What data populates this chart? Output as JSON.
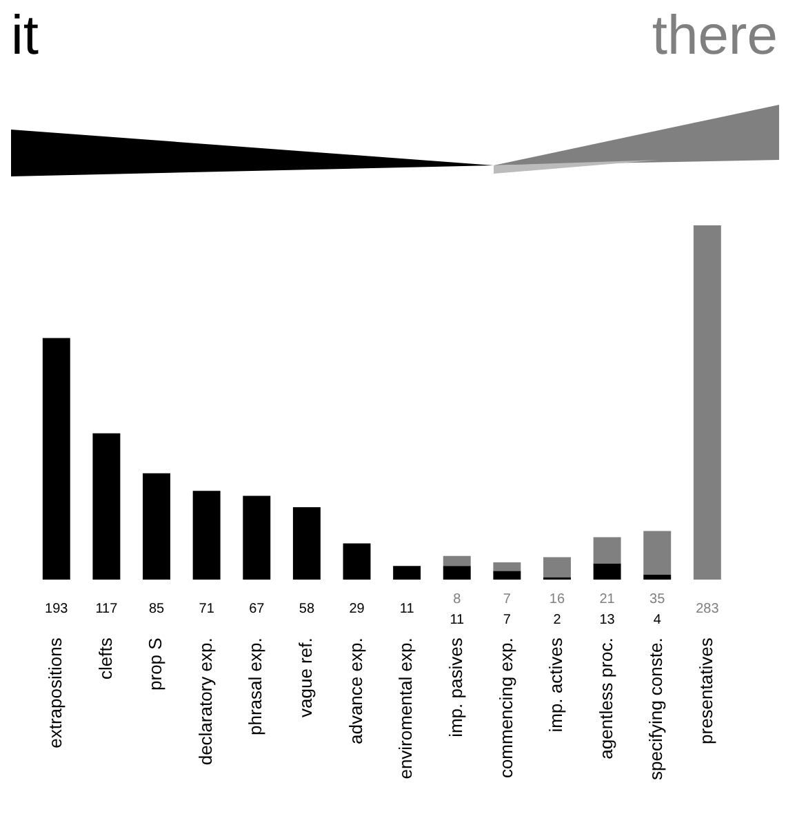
{
  "chart_data": {
    "type": "bar",
    "stacked": true,
    "categories": [
      "extrapositions",
      "clefts",
      "prop S",
      "declaratory exp.",
      "phrasal exp.",
      "vague ref.",
      "advance exp.",
      "enviromental exp.",
      "imp. pasives",
      "commencing exp.",
      "imp. actives",
      "agentless proc.",
      "specifying conste.",
      "presentatives"
    ],
    "series": [
      {
        "name": "it",
        "color": "#000000",
        "values": [
          193,
          117,
          85,
          71,
          67,
          58,
          29,
          11,
          11,
          7,
          2,
          13,
          4,
          0
        ],
        "value_labels": [
          "193",
          "117",
          "85",
          "71",
          "67",
          "58",
          "29",
          "11",
          "11",
          "7",
          "2",
          "13",
          "4",
          null
        ]
      },
      {
        "name": "there",
        "color": "#808080",
        "values": [
          0,
          0,
          0,
          0,
          0,
          0,
          0,
          0,
          8,
          7,
          16,
          21,
          35,
          283
        ],
        "value_labels": [
          null,
          null,
          null,
          null,
          null,
          null,
          null,
          null,
          "8",
          "7",
          "16",
          "21",
          "35",
          "283"
        ]
      }
    ],
    "grid": false
  }
}
